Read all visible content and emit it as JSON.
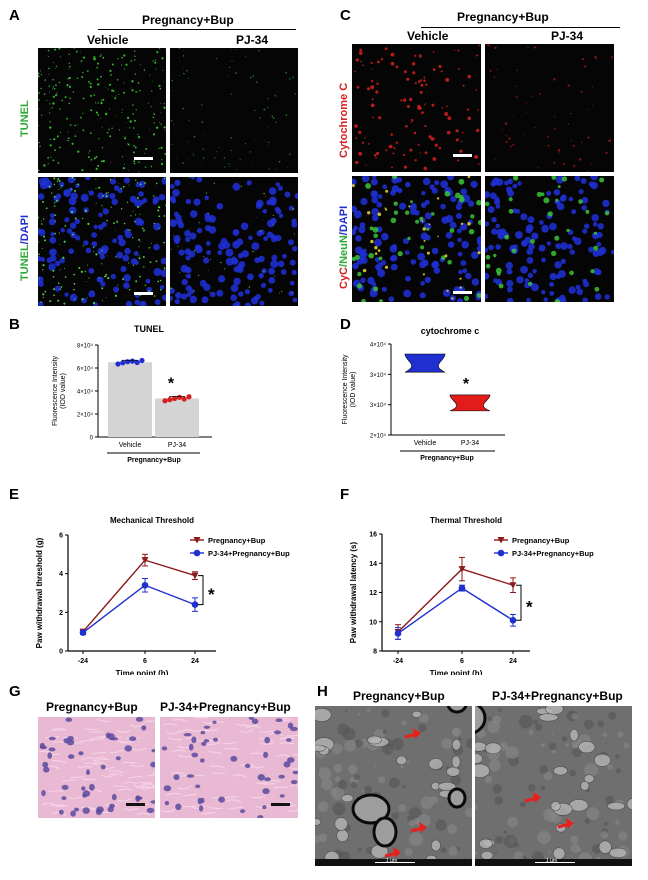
{
  "panels": {
    "A": {
      "letter": "A",
      "group_label": "Pregnancy+Bup",
      "col_labels": [
        "Vehicle",
        "PJ-34"
      ],
      "row_labels": [
        "TUNEL",
        "TUNEL/DAPI"
      ],
      "row_label_parts": {
        "top": "TUNEL",
        "bottom_a": "TUNEL",
        "bottom_b": "/DAPI"
      },
      "colors": {
        "green": "#2fa836",
        "blue": "#1f2fd0"
      }
    },
    "C": {
      "letter": "C",
      "group_label": "Pregnancy+Bup",
      "col_labels": [
        "Vehicle",
        "PJ-34"
      ],
      "row_label_parts": {
        "top": "Cytochrome C",
        "b1": "CyC",
        "b2": "/NeuN",
        "b3": "/DAPI"
      },
      "colors": {
        "red": "#d42020",
        "green": "#2fa836",
        "blue": "#1f2fd0"
      }
    },
    "B": {
      "letter": "B",
      "chart_data": {
        "type": "bar",
        "title": "TUNEL",
        "ylabel": "Fluorescence Intensity (IOD value)",
        "ylabel_lines": [
          "Fluorescence Intensity",
          "(IOD value)"
        ],
        "categories": [
          "Vehicle",
          "PJ-34"
        ],
        "values": [
          65000,
          33500
        ],
        "points": [
          [
            63500,
            64500,
            65500,
            66000,
            64800,
            66500
          ],
          [
            31500,
            32500,
            33500,
            34500,
            33000,
            35000
          ]
        ],
        "yticks": [
          0,
          20000,
          40000,
          60000,
          80000
        ],
        "ytick_labels": [
          "0",
          "2×10⁴",
          "4×10⁴",
          "6×10⁴",
          "8×10⁴"
        ],
        "ylim": [
          0,
          80000
        ],
        "group_label": "Pregnancy+Bup",
        "significance": "*",
        "point_colors": [
          "#1f2fd0",
          "#d42020"
        ]
      }
    },
    "D": {
      "letter": "D",
      "chart_data": {
        "type": "violin",
        "title": "cytochrome c",
        "ylabel": "Fluorescence Intensity (IOD value)",
        "ylabel_lines": [
          "Fluorescence Intensity",
          "(IOD value)"
        ],
        "categories": [
          "Vehicle",
          "PJ-34"
        ],
        "ranges": [
          [
            33800,
            37800
          ],
          [
            25300,
            28800
          ]
        ],
        "yticks": [
          20000,
          26667,
          33333,
          40000
        ],
        "ytick_labels": [
          "2×10⁴",
          "3×10⁴",
          "3×10⁴",
          "4×10⁴"
        ],
        "ylim": [
          20000,
          40000
        ],
        "group_label": "Pregnancy+Bup",
        "significance": "*",
        "fill_colors": [
          "#1f2fd0",
          "#e21b1b"
        ]
      }
    },
    "E": {
      "letter": "E",
      "chart_data": {
        "type": "line",
        "title": "Mechanical Threshold",
        "xlabel": "Time point (h)",
        "ylabel": "Paw withdrawal threshold (g)",
        "x": [
          "-24",
          "6",
          "24"
        ],
        "series": [
          {
            "name": "Pregnancy+Bup",
            "values": [
              1.0,
              4.7,
              3.9
            ],
            "err": [
              0.1,
              0.3,
              0.2
            ],
            "color": "#8b1a1a"
          },
          {
            "name": "PJ-34+Pregnancy+Bup",
            "values": [
              0.95,
              3.4,
              2.4
            ],
            "err": [
              0.1,
              0.35,
              0.35
            ],
            "color": "#1f2fd0"
          }
        ],
        "yticks": [
          0,
          2,
          4,
          6
        ],
        "ylim": [
          0,
          6
        ],
        "significance": "*"
      }
    },
    "F": {
      "letter": "F",
      "chart_data": {
        "type": "line",
        "title": "Thermal Threshold",
        "xlabel": "Time point (h)",
        "ylabel": "Paw withdrawal latency (s)",
        "x": [
          "-24",
          "6",
          "24"
        ],
        "series": [
          {
            "name": "Pregnancy+Bup",
            "values": [
              9.3,
              13.6,
              12.5
            ],
            "err": [
              0.5,
              0.8,
              0.5
            ],
            "color": "#8b1a1a"
          },
          {
            "name": "PJ-34+Pregnancy+Bup",
            "values": [
              9.2,
              12.3,
              10.1
            ],
            "err": [
              0.4,
              0.2,
              0.4
            ],
            "color": "#1f2fd0"
          }
        ],
        "yticks": [
          8,
          10,
          12,
          14,
          16
        ],
        "ylim": [
          8,
          16
        ],
        "significance": "*"
      }
    },
    "G": {
      "letter": "G",
      "col_labels": [
        "Pregnancy+Bup",
        "PJ-34+Pregnancy+Bup"
      ]
    },
    "H": {
      "letter": "H",
      "col_labels": [
        "Pregnancy+Bup",
        "PJ-34+Pregnancy+Bup"
      ],
      "scale_text": "1 μm",
      "arrow_color": "#e8201c"
    }
  }
}
